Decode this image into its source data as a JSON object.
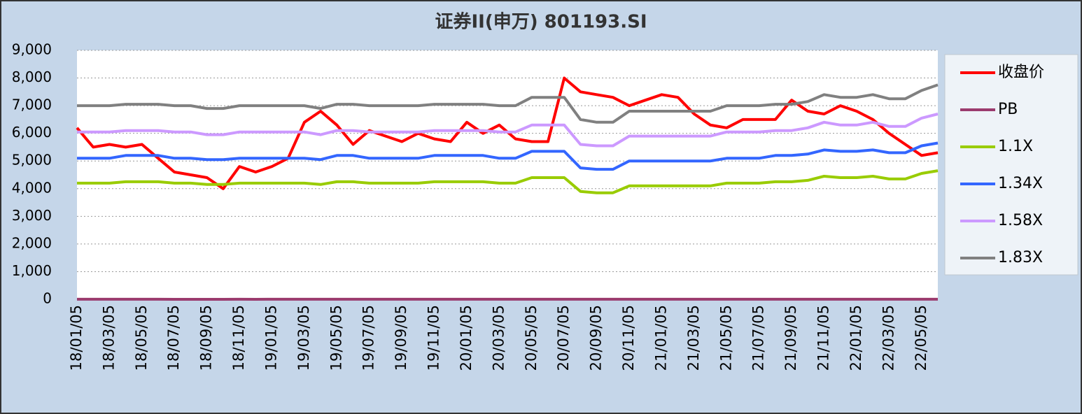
{
  "chart_data": {
    "type": "line",
    "title": "证券II(申万) 801193.SI",
    "categories": [
      "18/01/05",
      null,
      "18/03/05",
      null,
      "18/05/05",
      null,
      "18/07/05",
      null,
      "18/09/05",
      null,
      "18/11/05",
      null,
      "19/01/05",
      null,
      "19/03/05",
      null,
      "19/05/05",
      null,
      "19/07/05",
      null,
      "19/09/05",
      null,
      "19/11/05",
      null,
      "20/01/05",
      null,
      "20/03/05",
      null,
      "20/05/05",
      null,
      "20/07/05",
      null,
      "20/09/05",
      null,
      "20/11/05",
      null,
      "21/01/05",
      null,
      "21/03/05",
      null,
      "21/05/05",
      null,
      "21/07/05",
      null,
      "21/09/05",
      null,
      "21/11/05",
      null,
      "22/01/05",
      null,
      "22/03/05",
      null,
      "22/05/05",
      null
    ],
    "series": [
      {
        "name": "收盘价",
        "color": "#ff0000",
        "values": [
          6200,
          5500,
          5600,
          5500,
          5600,
          5100,
          4600,
          4500,
          4400,
          4000,
          4800,
          4600,
          4800,
          5100,
          6400,
          6800,
          6300,
          5600,
          6100,
          5900,
          5700,
          6000,
          5800,
          5700,
          6400,
          6000,
          6300,
          5800,
          5700,
          5700,
          8000,
          7500,
          7400,
          7300,
          7000,
          7200,
          7400,
          7300,
          6700,
          6300,
          6200,
          6500,
          6500,
          6500,
          7200,
          6800,
          6700,
          7000,
          6800,
          6500,
          6000,
          5600,
          5200,
          5300
        ]
      },
      {
        "name": "PB",
        "color": "#9b3b6e",
        "values": [
          1.6,
          1.4,
          1.5,
          1.4,
          1.5,
          1.3,
          1.2,
          1.2,
          1.2,
          1.1,
          1.3,
          1.2,
          1.3,
          1.3,
          1.7,
          1.8,
          1.6,
          1.4,
          1.6,
          1.5,
          1.5,
          1.6,
          1.5,
          1.5,
          1.7,
          1.6,
          1.6,
          1.5,
          1.4,
          1.4,
          2.0,
          2.1,
          2.1,
          2.1,
          1.9,
          1.9,
          2.0,
          2.0,
          1.8,
          1.7,
          1.6,
          1.7,
          1.7,
          1.7,
          1.9,
          1.7,
          1.7,
          1.7,
          1.7,
          1.6,
          1.5,
          1.4,
          1.3,
          1.3
        ]
      },
      {
        "name": "1.1X",
        "color": "#99cc00",
        "values": [
          4200,
          4200,
          4200,
          4250,
          4250,
          4250,
          4200,
          4200,
          4150,
          4150,
          4200,
          4200,
          4200,
          4200,
          4200,
          4150,
          4250,
          4250,
          4200,
          4200,
          4200,
          4200,
          4250,
          4250,
          4250,
          4250,
          4200,
          4200,
          4400,
          4400,
          4400,
          3900,
          3850,
          3850,
          4100,
          4100,
          4100,
          4100,
          4100,
          4100,
          4200,
          4200,
          4200,
          4250,
          4250,
          4300,
          4450,
          4400,
          4400,
          4450,
          4350,
          4350,
          4550,
          4650
        ]
      },
      {
        "name": "1.34X",
        "color": "#3366ff",
        "values": [
          5100,
          5100,
          5100,
          5200,
          5200,
          5200,
          5100,
          5100,
          5050,
          5050,
          5100,
          5100,
          5100,
          5100,
          5100,
          5050,
          5200,
          5200,
          5100,
          5100,
          5100,
          5100,
          5200,
          5200,
          5200,
          5200,
          5100,
          5100,
          5350,
          5350,
          5350,
          4750,
          4700,
          4700,
          5000,
          5000,
          5000,
          5000,
          5000,
          5000,
          5100,
          5100,
          5100,
          5200,
          5200,
          5250,
          5400,
          5350,
          5350,
          5400,
          5300,
          5300,
          5550,
          5650
        ]
      },
      {
        "name": "1.58X",
        "color": "#cc99ff",
        "values": [
          6050,
          6050,
          6050,
          6100,
          6100,
          6100,
          6050,
          6050,
          5950,
          5950,
          6050,
          6050,
          6050,
          6050,
          6050,
          5950,
          6100,
          6100,
          6050,
          6050,
          6050,
          6050,
          6100,
          6100,
          6100,
          6100,
          6050,
          6050,
          6300,
          6300,
          6300,
          5600,
          5550,
          5550,
          5900,
          5900,
          5900,
          5900,
          5900,
          5900,
          6050,
          6050,
          6050,
          6100,
          6100,
          6200,
          6400,
          6300,
          6300,
          6400,
          6250,
          6250,
          6550,
          6700
        ]
      },
      {
        "name": "1.83X",
        "color": "#808080",
        "values": [
          7000,
          7000,
          7000,
          7050,
          7050,
          7050,
          7000,
          7000,
          6900,
          6900,
          7000,
          7000,
          7000,
          7000,
          7000,
          6900,
          7050,
          7050,
          7000,
          7000,
          7000,
          7000,
          7050,
          7050,
          7050,
          7050,
          7000,
          7000,
          7300,
          7300,
          7300,
          6500,
          6400,
          6400,
          6800,
          6800,
          6800,
          6800,
          6800,
          6800,
          7000,
          7000,
          7000,
          7050,
          7050,
          7150,
          7400,
          7300,
          7300,
          7400,
          7250,
          7250,
          7550,
          7750
        ]
      }
    ],
    "ylim": [
      0,
      9000
    ],
    "yticks": [
      0,
      {
        "value": 1000,
        "label": "1,000"
      },
      {
        "value": 2000,
        "label": "2,000"
      },
      {
        "value": 3000,
        "label": "3,000"
      },
      {
        "value": 4000,
        "label": "4,000"
      },
      {
        "value": 5000,
        "label": "5,000"
      },
      {
        "value": 6000,
        "label": "6,000"
      },
      {
        "value": 7000,
        "label": "7,000"
      },
      {
        "value": 8000,
        "label": "8,000"
      },
      {
        "value": 9000,
        "label": "9,000"
      }
    ],
    "grid": true,
    "legend": "right"
  }
}
